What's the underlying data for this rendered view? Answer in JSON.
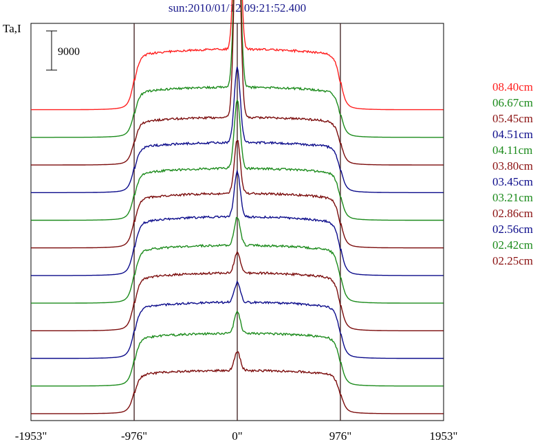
{
  "title": "sun:2010/01/12 09:21:52.400",
  "ylabel": "Ta,I",
  "scale_bar": {
    "label": "9000",
    "value": 9000
  },
  "chart_data": {
    "type": "line",
    "title": "sun:2010/01/12 09:21:52.400",
    "ylabel": "Ta,I",
    "xlabel": "",
    "x_tick_labels": [
      "-1953\"",
      "-976\"",
      "0\"",
      "976\"",
      "1953\""
    ],
    "x_ticks": [
      -1953,
      -976,
      0,
      976,
      1953
    ],
    "xlim": [
      -1953,
      1953
    ],
    "vertical_lines": [
      -976,
      0,
      976
    ],
    "grid": false,
    "legend_position": "right",
    "series": [
      {
        "name": "08.40cm",
        "color": "#ff1e1e",
        "baseline": 24000,
        "disk": 7000,
        "peak": 33000
      },
      {
        "name": "06.67cm",
        "color": "#1a8a1a",
        "baseline": 20800,
        "disk": 5800,
        "peak": 30500
      },
      {
        "name": "05.45cm",
        "color": "#7a0a0a",
        "baseline": 17600,
        "disk": 5500,
        "peak": 32000
      },
      {
        "name": "04.51cm",
        "color": "#0a0a8a",
        "baseline": 14400,
        "disk": 5800,
        "peak": 14500
      },
      {
        "name": "04.11cm",
        "color": "#1a8a1a",
        "baseline": 11200,
        "disk": 6000,
        "peak": 14000
      },
      {
        "name": "03.80cm",
        "color": "#7a0a0a",
        "baseline": 8000,
        "disk": 6300,
        "peak": 12500
      },
      {
        "name": "03.45cm",
        "color": "#0a0a8a",
        "baseline": 4800,
        "disk": 6800,
        "peak": 12000
      },
      {
        "name": "03.21cm",
        "color": "#1a8a1a",
        "baseline": 1600,
        "disk": 6700,
        "peak": 10000
      },
      {
        "name": "02.86cm",
        "color": "#7a0a0a",
        "baseline": -1600,
        "disk": 6700,
        "peak": 9000
      },
      {
        "name": "02.56cm",
        "color": "#0a0a8a",
        "baseline": -4800,
        "disk": 6500,
        "peak": 8800
      },
      {
        "name": "02.42cm",
        "color": "#1a8a1a",
        "baseline": -8000,
        "disk": 6100,
        "peak": 8600
      },
      {
        "name": "02.25cm",
        "color": "#7a0a0a",
        "baseline": -11200,
        "disk": 5000,
        "peak": 7200
      }
    ],
    "ylim": [
      -12000,
      34000
    ]
  }
}
